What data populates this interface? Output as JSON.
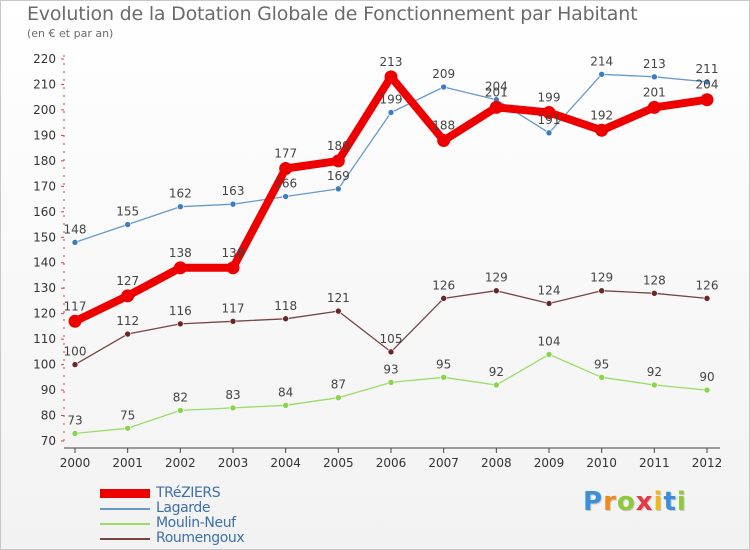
{
  "header": {
    "title": "Evolution de la Dotation Globale de Fonctionnement par Habitant",
    "subtitle": "(en € et par an)"
  },
  "chart_data": {
    "type": "line",
    "title": "Evolution de la Dotation Globale de Fonctionnement par Habitant",
    "subtitle": "(en € et par an)",
    "xlabel": "",
    "ylabel": "",
    "categories": [
      "2000",
      "2001",
      "2002",
      "2003",
      "2004",
      "2005",
      "2006",
      "2007",
      "2008",
      "2009",
      "2010",
      "2011",
      "2012"
    ],
    "ylim": [
      70,
      220
    ],
    "yticks": [
      70,
      80,
      90,
      100,
      110,
      120,
      130,
      140,
      150,
      160,
      170,
      180,
      190,
      200,
      210,
      220
    ],
    "grid": false,
    "legend_position": "bottom-left",
    "series": [
      {
        "name": "TRéZIERS",
        "color": "#ee0000",
        "emphasis": "bold",
        "values": [
          117,
          127,
          138,
          138,
          177,
          180,
          213,
          188,
          201,
          199,
          192,
          201,
          204
        ]
      },
      {
        "name": "Lagarde",
        "color": "#6699cc",
        "marker": "#3a7dc4",
        "values": [
          148,
          155,
          162,
          163,
          166,
          169,
          199,
          209,
          204,
          191,
          214,
          213,
          211
        ]
      },
      {
        "name": "Moulin-Neuf",
        "color": "#99dd66",
        "marker": "#88d44a",
        "values": [
          73,
          75,
          82,
          83,
          84,
          87,
          93,
          95,
          92,
          104,
          95,
          92,
          90
        ]
      },
      {
        "name": "Roumengoux",
        "color": "#774444",
        "marker": "#6b2525",
        "values": [
          100,
          112,
          116,
          117,
          118,
          121,
          105,
          126,
          129,
          124,
          129,
          128,
          126
        ]
      }
    ]
  },
  "brand": {
    "letters": [
      {
        "char": "P",
        "color": "#3b8fd8"
      },
      {
        "char": "r",
        "color": "#f08a1c"
      },
      {
        "char": "o",
        "color": "#8fc93a"
      },
      {
        "char": "x",
        "color": "#e63946"
      },
      {
        "char": "i",
        "color": "#f0b81c"
      },
      {
        "char": "t",
        "color": "#3b8fd8"
      },
      {
        "char": "i",
        "color": "#8fc93a"
      }
    ]
  }
}
